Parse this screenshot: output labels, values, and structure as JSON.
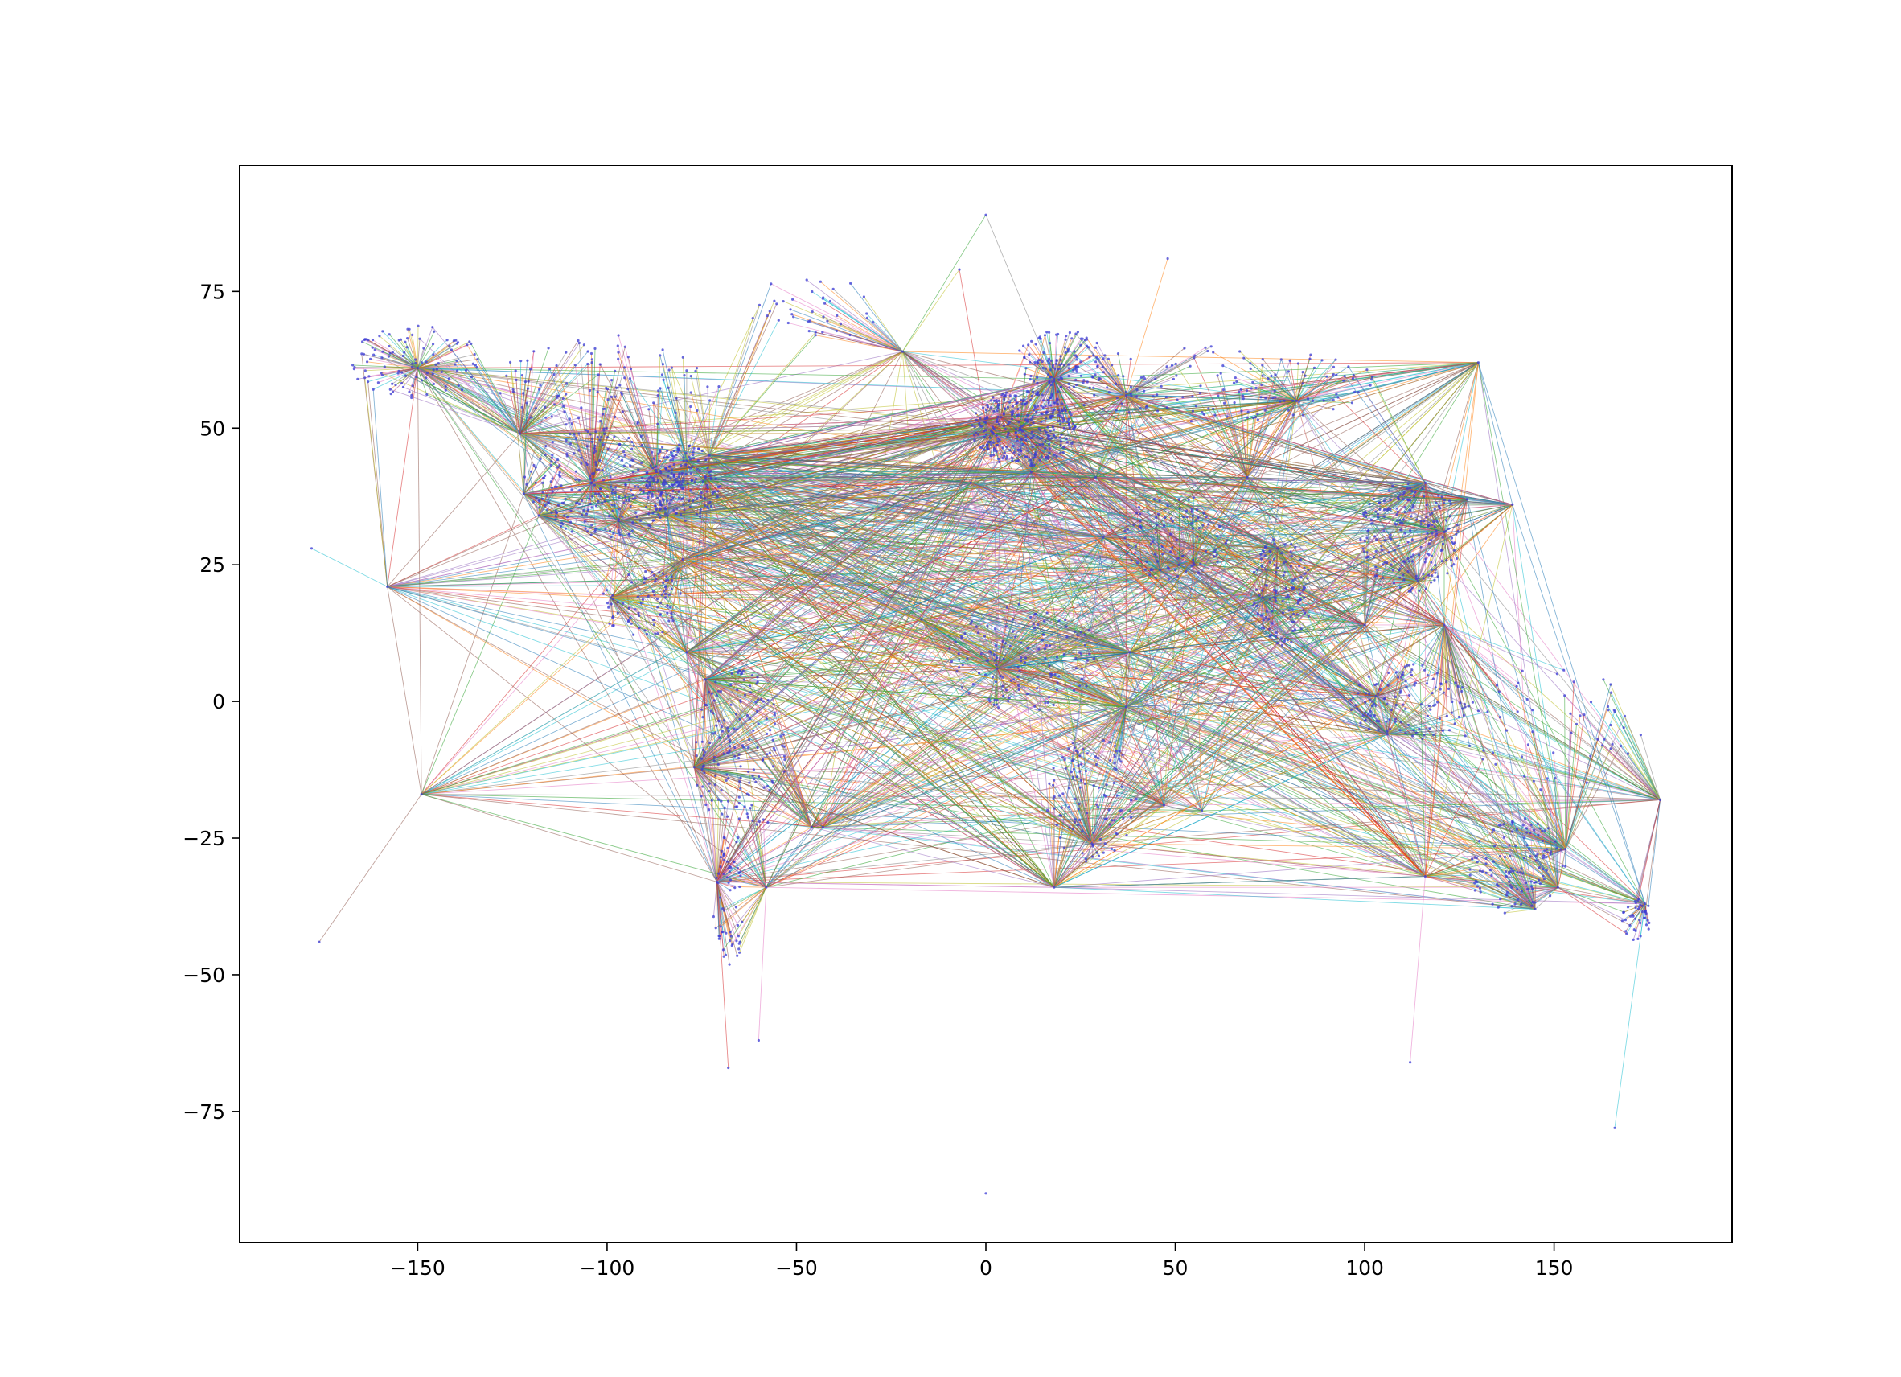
{
  "chart_data": {
    "type": "scatter",
    "title": "",
    "xlabel": "",
    "ylabel": "",
    "xlim": [
      -197,
      197
    ],
    "ylim": [
      -99,
      98
    ],
    "xticks": [
      -150,
      -100,
      -50,
      0,
      50,
      100,
      150
    ],
    "xtick_labels": [
      "−150",
      "−100",
      "−50",
      "0",
      "50",
      "100",
      "150"
    ],
    "yticks": [
      75,
      50,
      25,
      0,
      -25,
      -50,
      -75
    ],
    "ytick_labels": [
      "75",
      "50",
      "25",
      "0",
      "−25",
      "−50",
      "−75"
    ],
    "grid": false,
    "legend": "none",
    "point_color": "#3b3bd6",
    "edge_colors": [
      "#1f77b4",
      "#ff7f0e",
      "#2ca02c",
      "#d62728",
      "#9467bd",
      "#8c564b",
      "#e377c2",
      "#7f7f7f",
      "#bcbd22",
      "#17becf"
    ],
    "hubs": [
      {
        "x": -123,
        "y": 49
      },
      {
        "x": -122,
        "y": 38
      },
      {
        "x": -118,
        "y": 34
      },
      {
        "x": -104,
        "y": 40
      },
      {
        "x": -97,
        "y": 33
      },
      {
        "x": -87,
        "y": 42
      },
      {
        "x": -84,
        "y": 34
      },
      {
        "x": -80,
        "y": 26
      },
      {
        "x": -74,
        "y": 41
      },
      {
        "x": -79,
        "y": 44
      },
      {
        "x": -73,
        "y": 45
      },
      {
        "x": -99,
        "y": 19
      },
      {
        "x": -79,
        "y": 9
      },
      {
        "x": -74,
        "y": 4
      },
      {
        "x": -77,
        "y": -12
      },
      {
        "x": -71,
        "y": -33
      },
      {
        "x": -58,
        "y": -34
      },
      {
        "x": -46,
        "y": -23
      },
      {
        "x": -43,
        "y": -23
      },
      {
        "x": -158,
        "y": 21
      },
      {
        "x": -150,
        "y": 61
      },
      {
        "x": -149,
        "y": -17
      },
      {
        "x": -22,
        "y": 64
      },
      {
        "x": 0,
        "y": 51
      },
      {
        "x": 2,
        "y": 49
      },
      {
        "x": 9,
        "y": 50
      },
      {
        "x": 4,
        "y": 52
      },
      {
        "x": -4,
        "y": 40
      },
      {
        "x": 12,
        "y": 42
      },
      {
        "x": 29,
        "y": 41
      },
      {
        "x": 37,
        "y": 56
      },
      {
        "x": 18,
        "y": 59
      },
      {
        "x": 31,
        "y": 30
      },
      {
        "x": 55,
        "y": 25
      },
      {
        "x": 51,
        "y": 25
      },
      {
        "x": 46,
        "y": 24
      },
      {
        "x": 38,
        "y": 9
      },
      {
        "x": 37,
        "y": -1
      },
      {
        "x": 28,
        "y": -26
      },
      {
        "x": 18,
        "y": -34
      },
      {
        "x": 3,
        "y": 6
      },
      {
        "x": -17,
        "y": 15
      },
      {
        "x": 73,
        "y": 19
      },
      {
        "x": 77,
        "y": 28
      },
      {
        "x": 103,
        "y": 1
      },
      {
        "x": 100,
        "y": 14
      },
      {
        "x": 114,
        "y": 22
      },
      {
        "x": 121,
        "y": 31
      },
      {
        "x": 116,
        "y": 40
      },
      {
        "x": 127,
        "y": 37
      },
      {
        "x": 139,
        "y": 36
      },
      {
        "x": 121,
        "y": 14
      },
      {
        "x": 106,
        "y": -6
      },
      {
        "x": 151,
        "y": -34
      },
      {
        "x": 145,
        "y": -38
      },
      {
        "x": 153,
        "y": -27
      },
      {
        "x": 116,
        "y": -32
      },
      {
        "x": 174,
        "y": -37
      },
      {
        "x": 178,
        "y": -18
      },
      {
        "x": 130,
        "y": 62
      },
      {
        "x": 82,
        "y": 55
      },
      {
        "x": 69,
        "y": 41
      },
      {
        "x": 57,
        "y": -20
      },
      {
        "x": 47,
        "y": -19
      }
    ],
    "regions": [
      {
        "cx": -150,
        "cy": 62,
        "rx": 18,
        "ry": 7,
        "n": 110
      },
      {
        "cx": -100,
        "cy": 40,
        "rx": 22,
        "ry": 10,
        "n": 260
      },
      {
        "cx": -80,
        "cy": 40,
        "rx": 10,
        "ry": 7,
        "n": 160
      },
      {
        "cx": -100,
        "cy": 58,
        "rx": 30,
        "ry": 9,
        "n": 120
      },
      {
        "cx": -90,
        "cy": 18,
        "rx": 12,
        "ry": 6,
        "n": 80
      },
      {
        "cx": -65,
        "cy": -10,
        "rx": 12,
        "ry": 16,
        "n": 170
      },
      {
        "cx": -68,
        "cy": -38,
        "rx": 4,
        "ry": 12,
        "n": 60
      },
      {
        "cx": -45,
        "cy": 72,
        "rx": 18,
        "ry": 6,
        "n": 40
      },
      {
        "cx": 10,
        "cy": 50,
        "rx": 14,
        "ry": 7,
        "n": 300
      },
      {
        "cx": 20,
        "cy": 62,
        "rx": 12,
        "ry": 6,
        "n": 120
      },
      {
        "cx": 60,
        "cy": 58,
        "rx": 45,
        "ry": 7,
        "n": 160
      },
      {
        "cx": 10,
        "cy": 8,
        "rx": 20,
        "ry": 10,
        "n": 130
      },
      {
        "cx": 28,
        "cy": -18,
        "rx": 12,
        "ry": 12,
        "n": 110
      },
      {
        "cx": 50,
        "cy": 30,
        "rx": 14,
        "ry": 8,
        "n": 90
      },
      {
        "cx": 78,
        "cy": 20,
        "rx": 8,
        "ry": 10,
        "n": 110
      },
      {
        "cx": 112,
        "cy": 30,
        "rx": 14,
        "ry": 10,
        "n": 200
      },
      {
        "cx": 112,
        "cy": 0,
        "rx": 16,
        "ry": 7,
        "n": 120
      },
      {
        "cx": 140,
        "cy": -30,
        "rx": 13,
        "ry": 9,
        "n": 120
      },
      {
        "cx": 172,
        "cy": -40,
        "rx": 4,
        "ry": 4,
        "n": 40
      },
      {
        "cx": 150,
        "cy": -5,
        "rx": 25,
        "ry": 12,
        "n": 60
      }
    ]
  }
}
